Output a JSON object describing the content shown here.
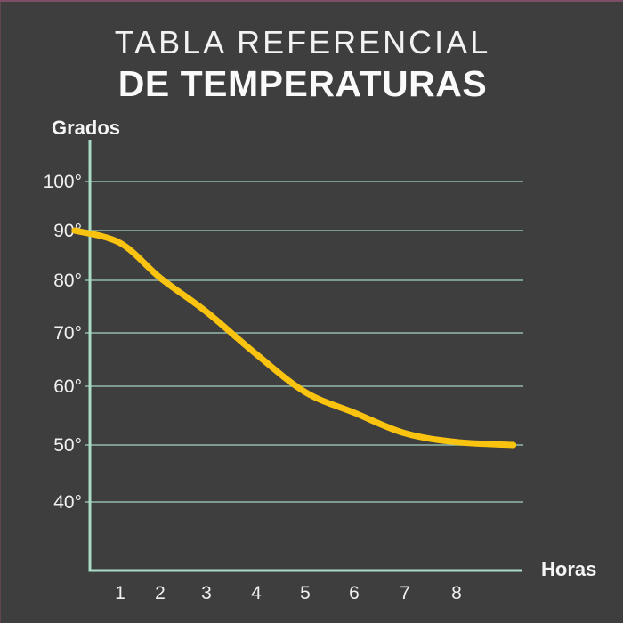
{
  "page": {
    "title_line1": "TABLA REFERENCIAL",
    "title_line2": "DE TEMPERATURAS",
    "background_color": "#3E3E3E",
    "top_border_color": "#7C4E68"
  },
  "chart_data": {
    "type": "line",
    "title": "TABLA REFERENCIAL DE TEMPERATURAS",
    "xlabel": "Horas",
    "ylabel": "Grados",
    "x_ticks": [
      1,
      2,
      3,
      4,
      5,
      6,
      7,
      8
    ],
    "y_tick_labels": [
      "100°",
      "90°",
      "80°",
      "70°",
      "60°",
      "50°",
      "40°"
    ],
    "y_tick_values": [
      100,
      90,
      80,
      70,
      60,
      50,
      40
    ],
    "grid": "horizontal-only",
    "legend": "none",
    "series": [
      {
        "name": "temperatura",
        "color": "#F9C310",
        "points": [
          {
            "hour": 0.6,
            "deg": 90
          },
          {
            "hour": 1,
            "deg": 87.5
          },
          {
            "hour": 2,
            "deg": 80.5
          },
          {
            "hour": 3,
            "deg": 74
          },
          {
            "hour": 4,
            "deg": 66
          },
          {
            "hour": 5,
            "deg": 59
          },
          {
            "hour": 6,
            "deg": 55.5
          },
          {
            "hour": 7,
            "deg": 52
          },
          {
            "hour": 8,
            "deg": 50.5
          },
          {
            "hour": 9.1,
            "deg": 50
          }
        ]
      }
    ],
    "colors": {
      "axis": "#A8DCC6",
      "grid": "#A8DCC6",
      "line": "#F9C310",
      "tick_text": "#F0F0F0",
      "background": "#3E3E3E"
    }
  }
}
